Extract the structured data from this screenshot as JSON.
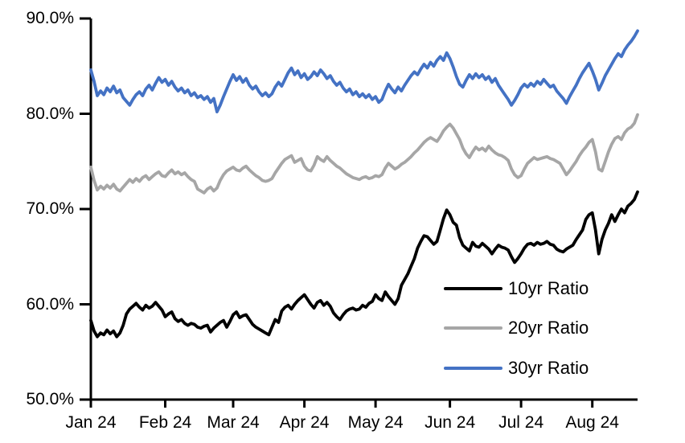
{
  "chart_data": {
    "type": "line",
    "title": "",
    "xlabel": "",
    "ylabel": "",
    "grid": false,
    "background": "#ffffff",
    "axis_color": "#000000",
    "ylim": [
      50,
      90
    ],
    "y_ticks": [
      90,
      80,
      70,
      60,
      50
    ],
    "y_tick_labels": [
      "90.0%",
      "80.0%",
      "70.0%",
      "60.0%",
      "50.0%"
    ],
    "x_tick_labels": [
      "Jan 24",
      "Feb 24",
      "Mar 24",
      "Apr 24",
      "May 24",
      "Jun 24",
      "Jul 24",
      "Aug 24"
    ],
    "x_tick_indices": [
      0,
      23,
      44,
      66,
      88,
      111,
      133,
      155
    ],
    "legend_position": "inside-lower-right",
    "series": [
      {
        "name": "10yr Ratio",
        "color": "#000000",
        "values": [
          58.3,
          57.2,
          56.6,
          57.0,
          56.8,
          57.3,
          56.9,
          57.2,
          56.6,
          57.0,
          57.8,
          59.0,
          59.5,
          59.8,
          60.1,
          59.7,
          59.4,
          59.9,
          59.6,
          59.8,
          60.2,
          59.8,
          59.4,
          58.7,
          59.0,
          59.2,
          58.5,
          58.2,
          58.4,
          58.0,
          57.8,
          58.0,
          57.9,
          57.6,
          57.5,
          57.7,
          57.8,
          57.1,
          57.5,
          57.8,
          58.1,
          58.3,
          57.6,
          58.2,
          58.9,
          59.2,
          58.6,
          58.8,
          58.9,
          58.4,
          57.9,
          57.6,
          57.4,
          57.2,
          57.0,
          56.8,
          57.6,
          58.4,
          58.1,
          59.3,
          59.7,
          59.9,
          59.5,
          60.0,
          60.4,
          60.7,
          61.0,
          60.5,
          60.0,
          59.6,
          60.2,
          60.4,
          59.9,
          60.2,
          59.8,
          59.1,
          58.7,
          58.4,
          58.9,
          59.3,
          59.5,
          59.6,
          59.4,
          59.5,
          59.9,
          59.7,
          60.1,
          60.3,
          61.0,
          60.6,
          60.4,
          61.3,
          60.8,
          60.4,
          60.0,
          60.6,
          62.0,
          62.6,
          63.2,
          64.0,
          64.8,
          65.9,
          66.6,
          67.2,
          67.1,
          66.7,
          66.3,
          66.6,
          67.8,
          69.0,
          69.9,
          69.4,
          68.6,
          68.3,
          67.0,
          66.2,
          65.9,
          65.6,
          66.5,
          66.1,
          66.0,
          66.4,
          66.1,
          65.8,
          65.3,
          65.8,
          66.2,
          66.0,
          65.9,
          65.7,
          65.0,
          64.4,
          64.8,
          65.3,
          65.9,
          66.3,
          66.4,
          66.2,
          66.5,
          66.3,
          66.4,
          66.6,
          66.3,
          66.2,
          65.8,
          65.6,
          65.5,
          65.8,
          66.0,
          66.2,
          66.8,
          67.3,
          67.8,
          68.9,
          69.4,
          69.6,
          67.8,
          65.3,
          66.8,
          67.8,
          68.5,
          69.4,
          68.7,
          69.4,
          70.0,
          69.6,
          70.3,
          70.6,
          71.0,
          71.8
        ]
      },
      {
        "name": "20yr Ratio",
        "color": "#A6A6A6",
        "values": [
          74.4,
          73.0,
          72.0,
          72.4,
          72.1,
          72.5,
          72.2,
          72.6,
          72.1,
          71.9,
          72.3,
          72.7,
          73.1,
          72.8,
          73.2,
          72.9,
          73.3,
          73.5,
          73.1,
          73.4,
          73.7,
          73.9,
          73.5,
          73.4,
          73.8,
          74.1,
          73.7,
          73.9,
          73.6,
          73.8,
          73.4,
          73.1,
          72.9,
          72.1,
          71.9,
          71.7,
          72.1,
          72.3,
          71.9,
          72.2,
          73.0,
          73.6,
          74.0,
          74.2,
          74.4,
          74.1,
          74.0,
          74.3,
          74.5,
          74.1,
          73.8,
          73.5,
          73.3,
          73.0,
          72.9,
          73.0,
          73.2,
          73.8,
          74.3,
          74.8,
          75.2,
          75.4,
          75.6,
          74.9,
          75.1,
          75.3,
          74.5,
          74.1,
          74.0,
          74.6,
          75.5,
          75.2,
          75.0,
          75.5,
          75.1,
          74.8,
          74.5,
          74.3,
          74.0,
          73.7,
          73.5,
          73.3,
          73.2,
          73.1,
          73.3,
          73.4,
          73.2,
          73.3,
          73.5,
          73.4,
          73.6,
          74.3,
          74.8,
          74.5,
          74.2,
          74.4,
          74.7,
          74.9,
          75.2,
          75.5,
          75.9,
          76.2,
          76.6,
          77.0,
          77.3,
          77.5,
          77.3,
          77.1,
          77.6,
          78.2,
          78.6,
          78.9,
          78.5,
          77.9,
          77.3,
          76.4,
          75.8,
          75.4,
          76.0,
          76.5,
          76.2,
          76.4,
          76.1,
          76.6,
          76.2,
          75.9,
          75.7,
          75.6,
          75.4,
          75.1,
          74.2,
          73.6,
          73.3,
          73.5,
          74.2,
          74.8,
          75.1,
          75.4,
          75.2,
          75.3,
          75.4,
          75.5,
          75.3,
          75.2,
          75.0,
          74.8,
          74.2,
          73.6,
          74.0,
          74.5,
          75.0,
          75.6,
          76.1,
          76.5,
          77.0,
          77.3,
          76.0,
          74.2,
          74.0,
          75.0,
          76.0,
          76.8,
          77.4,
          77.6,
          77.3,
          78.0,
          78.4,
          78.6,
          79.0,
          79.9
        ]
      },
      {
        "name": "30yr Ratio",
        "color": "#4472C4",
        "values": [
          84.6,
          83.4,
          81.9,
          82.4,
          82.0,
          82.7,
          82.3,
          82.9,
          82.2,
          82.5,
          81.7,
          81.3,
          80.9,
          81.5,
          82.0,
          82.3,
          81.9,
          82.6,
          83.0,
          82.5,
          83.2,
          83.8,
          83.3,
          83.6,
          83.0,
          83.4,
          82.8,
          82.4,
          82.7,
          82.2,
          82.5,
          81.9,
          82.2,
          81.7,
          81.9,
          81.5,
          81.8,
          81.2,
          81.6,
          80.2,
          80.9,
          81.8,
          82.6,
          83.4,
          84.1,
          83.5,
          83.9,
          83.3,
          83.7,
          83.0,
          82.6,
          82.9,
          82.3,
          81.9,
          82.2,
          81.8,
          82.1,
          82.8,
          83.3,
          82.9,
          83.6,
          84.3,
          84.8,
          84.1,
          84.5,
          83.8,
          84.2,
          83.6,
          83.9,
          84.4,
          84.0,
          84.6,
          84.2,
          83.7,
          84.0,
          83.4,
          83.0,
          83.3,
          82.7,
          82.3,
          82.6,
          82.0,
          82.3,
          81.8,
          82.1,
          81.7,
          82.0,
          81.5,
          81.8,
          81.2,
          81.5,
          82.4,
          83.1,
          82.6,
          82.2,
          82.8,
          82.4,
          83.0,
          83.5,
          84.0,
          84.4,
          84.1,
          84.7,
          85.2,
          84.8,
          85.4,
          85.0,
          85.6,
          86.0,
          85.6,
          86.4,
          85.8,
          84.9,
          83.9,
          83.1,
          82.8,
          83.5,
          84.1,
          83.7,
          84.2,
          83.8,
          84.1,
          83.6,
          83.9,
          83.3,
          83.7,
          83.0,
          82.5,
          82.0,
          81.5,
          80.9,
          81.4,
          82.0,
          82.7,
          83.1,
          82.8,
          83.2,
          82.9,
          83.4,
          83.1,
          83.6,
          83.2,
          82.8,
          83.0,
          82.4,
          82.0,
          81.6,
          81.1,
          81.8,
          82.4,
          83.0,
          83.7,
          84.3,
          84.8,
          85.3,
          84.5,
          83.6,
          82.5,
          83.2,
          84.0,
          84.6,
          85.2,
          85.8,
          86.3,
          86.0,
          86.7,
          87.2,
          87.6,
          88.1,
          88.7
        ]
      }
    ]
  }
}
